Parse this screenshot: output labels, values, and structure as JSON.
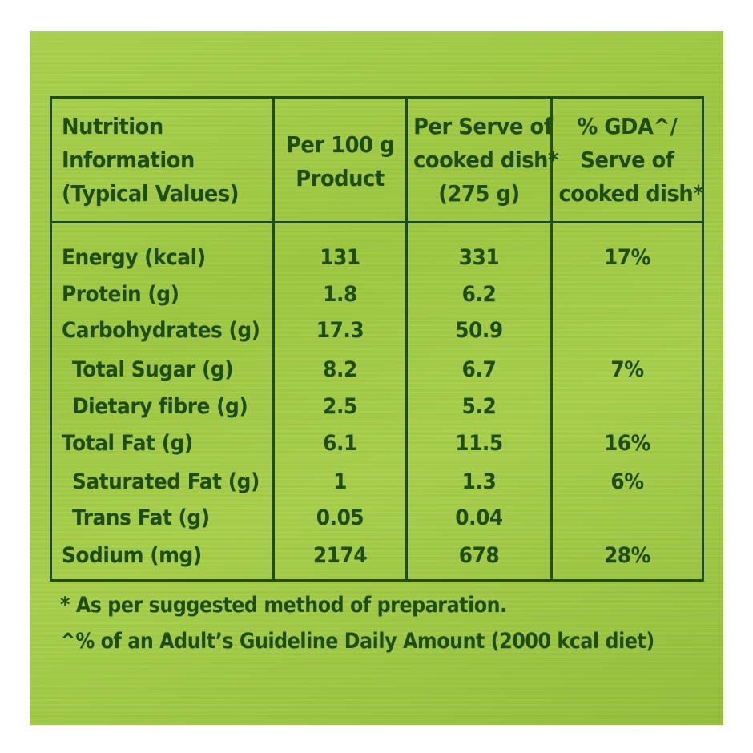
{
  "headers": {
    "col1": [
      "Nutrition",
      "Information",
      "(Typical Values)"
    ],
    "col2": [
      "Per 100 g",
      "Product"
    ],
    "col3": [
      "Per Serve of",
      "cooked dish*",
      "(275 g)"
    ],
    "col4": [
      "% GDA^/",
      "Serve of",
      "cooked dish*"
    ]
  },
  "rows": [
    {
      "name": "Energy (kcal)",
      "per100": "131",
      "perServe": "331",
      "gda": "17%"
    },
    {
      "name": "Protein (g)",
      "per100": "1.8",
      "perServe": "6.2",
      "gda": ""
    },
    {
      "name": "Carbohydrates (g)",
      "per100": "17.3",
      "perServe": "50.9",
      "gda": ""
    },
    {
      "name": "Total Sugar (g)",
      "per100": "8.2",
      "perServe": "6.7",
      "gda": "7%"
    },
    {
      "name": "Dietary fibre (g)",
      "per100": "2.5",
      "perServe": "5.2",
      "gda": ""
    },
    {
      "name": "Total Fat (g)",
      "per100": "6.1",
      "perServe": "11.5",
      "gda": "16%"
    },
    {
      "name": "Saturated Fat (g)",
      "per100": "1",
      "perServe": "1.3",
      "gda": "6%"
    },
    {
      "name": "Trans Fat (g)",
      "per100": "0.05",
      "perServe": "0.04",
      "gda": ""
    },
    {
      "name": "Sodium (mg)",
      "per100": "2174",
      "perServe": "678",
      "gda": "28%"
    }
  ],
  "footnotes": [
    "* As per suggested method of preparation.",
    "^% of an Adult’s Guideline Daily Amount (2000 kcal diet)"
  ]
}
